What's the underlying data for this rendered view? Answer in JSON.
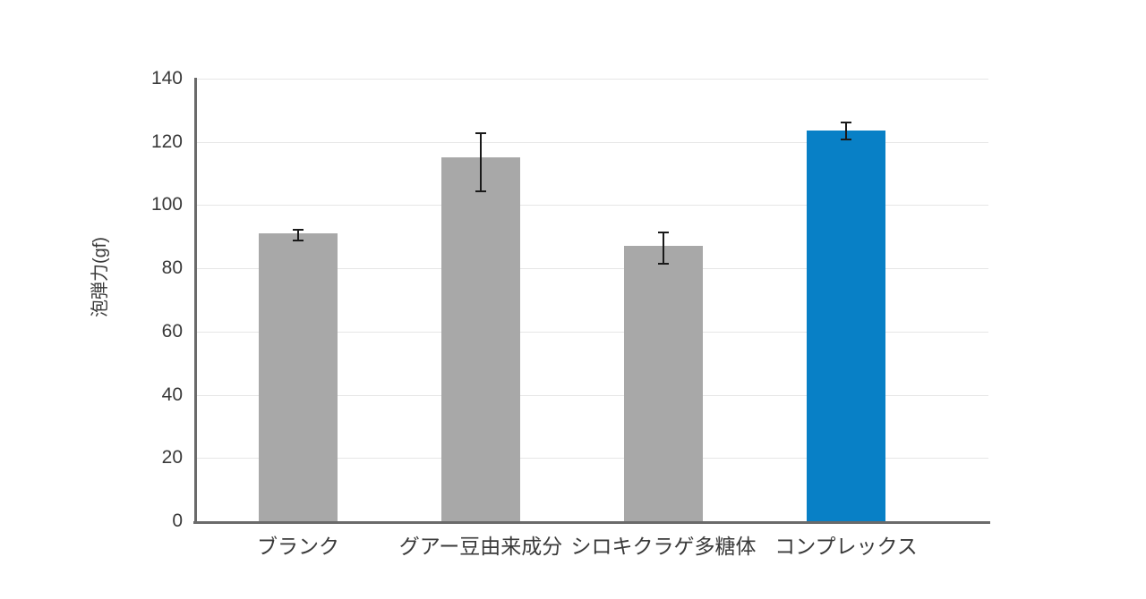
{
  "chart_data": {
    "type": "bar",
    "title": "",
    "xlabel": "",
    "ylabel": "泡弾力(gf)",
    "ylim": [
      0,
      140
    ],
    "yticks": [
      0,
      20,
      40,
      60,
      80,
      100,
      120,
      140
    ],
    "grid": true,
    "legend": "none",
    "categories": [
      "ブランク",
      "グアー豆由来成分",
      "シロキクラゲ多糖体",
      "コンプレックス"
    ],
    "series": [
      {
        "name": "泡弾力",
        "values": [
          91,
          115,
          87,
          123.5
        ],
        "error_plus": [
          1.5,
          8,
          4.5,
          3
        ],
        "error_minus": [
          2.5,
          11,
          6,
          3
        ]
      }
    ],
    "bar_colors": [
      "#a8a8a8",
      "#a8a8a8",
      "#a8a8a8",
      "#0880c6"
    ],
    "highlight_index": 3
  },
  "colors": {
    "bar_gray": "#a8a8a8",
    "bar_blue": "#0880c6",
    "axis": "#6a6a6a",
    "gridline": "#e6e6e6",
    "error_bar": "#1a1a1a",
    "text": "#3a3a3a",
    "background": "#ffffff"
  }
}
